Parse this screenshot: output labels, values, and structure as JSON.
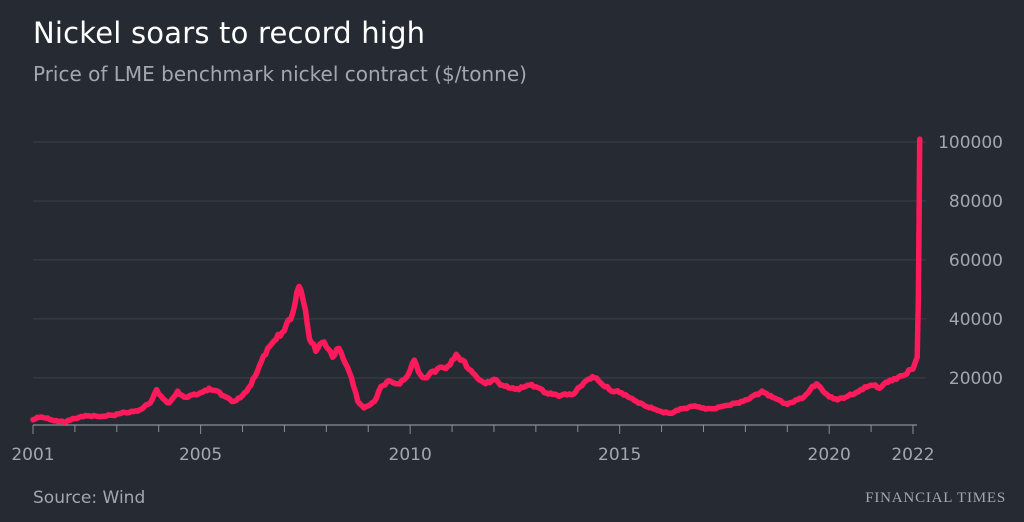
{
  "header": {
    "title": "Nickel soars to record high",
    "subtitle": "Price of LME benchmark nickel contract ($/tonne)"
  },
  "footer": {
    "source": "Source: Wind",
    "brand": "FINANCIAL TIMES"
  },
  "colors": {
    "background": "#262a33",
    "line": "#ff1a5b",
    "grid": "#3b404b",
    "text": "#a3a7af"
  },
  "chart_data": {
    "type": "line",
    "title": "Nickel soars to record high",
    "subtitle": "Price of LME benchmark nickel contract ($/tonne)",
    "xlabel": "",
    "ylabel": "",
    "xlim": [
      2001,
      2022.1
    ],
    "ylim": [
      3000,
      105000
    ],
    "y_axis_position": "right",
    "grid": "horizontal",
    "x_tick_labels": [
      "2001",
      "2005",
      "2010",
      "2015",
      "2020",
      "2022"
    ],
    "y_tick_labels": [
      "20000",
      "40000",
      "60000",
      "80000",
      "100000"
    ],
    "series": [
      {
        "x": [
          2001.0,
          2001.2,
          2001.5,
          2001.75,
          2002.0,
          2002.3,
          2002.6,
          2002.9,
          2003.2,
          2003.5,
          2003.8,
          2003.95,
          2004.1,
          2004.25,
          2004.45,
          2004.6,
          2004.8,
          2005.0,
          2005.2,
          2005.4,
          2005.6,
          2005.8,
          2006.0,
          2006.2,
          2006.4,
          2006.6,
          2006.8,
          2007.0,
          2007.2,
          2007.35,
          2007.45,
          2007.6,
          2007.75,
          2007.9,
          2008.0,
          2008.15,
          2008.3,
          2008.45,
          2008.6,
          2008.75,
          2008.9,
          2009.0,
          2009.15,
          2009.3,
          2009.5,
          2009.7,
          2009.9,
          2010.1,
          2010.25,
          2010.35,
          2010.5,
          2010.7,
          2010.9,
          2011.1,
          2011.25,
          2011.45,
          2011.6,
          2011.8,
          2012.0,
          2012.2,
          2012.4,
          2012.6,
          2012.8,
          2013.0,
          2013.3,
          2013.6,
          2013.9,
          2014.2,
          2014.4,
          2014.6,
          2014.8,
          2015.0,
          2015.2,
          2015.4,
          2015.6,
          2015.8,
          2016.0,
          2016.2,
          2016.5,
          2016.8,
          2017.0,
          2017.2,
          2017.5,
          2017.8,
          2018.0,
          2018.2,
          2018.4,
          2018.6,
          2018.8,
          2019.0,
          2019.2,
          2019.4,
          2019.55,
          2019.7,
          2019.85,
          2020.0,
          2020.2,
          2020.4,
          2020.6,
          2020.8,
          2021.0,
          2021.2,
          2021.4,
          2021.6,
          2021.8,
          2022.0,
          2022.1,
          2022.13,
          2022.16
        ],
        "values": [
          5800,
          6700,
          5400,
          4900,
          6200,
          7100,
          6800,
          7300,
          8200,
          8700,
          11500,
          16000,
          13000,
          11500,
          15500,
          13500,
          14200,
          15000,
          16500,
          15500,
          13500,
          12000,
          14000,
          17500,
          24000,
          30000,
          33000,
          36000,
          42000,
          51000,
          46000,
          33000,
          29000,
          32000,
          30500,
          27000,
          30000,
          25000,
          20000,
          12000,
          9800,
          10500,
          12000,
          17000,
          19000,
          18000,
          20000,
          26000,
          21000,
          20000,
          22000,
          23500,
          24000,
          28000,
          26000,
          22500,
          20000,
          18000,
          19500,
          17500,
          16500,
          16000,
          17500,
          17000,
          14500,
          14000,
          14500,
          19000,
          20000,
          17500,
          15500,
          15000,
          13500,
          12000,
          10500,
          9500,
          8500,
          8000,
          9500,
          10500,
          9800,
          9500,
          10500,
          11500,
          12500,
          14000,
          15500,
          14000,
          12500,
          11000,
          12500,
          13500,
          16000,
          18000,
          15500,
          13500,
          12500,
          13500,
          14500,
          16000,
          17500,
          16500,
          18500,
          19500,
          21000,
          23000,
          27000,
          48000,
          101000
        ]
      }
    ]
  }
}
